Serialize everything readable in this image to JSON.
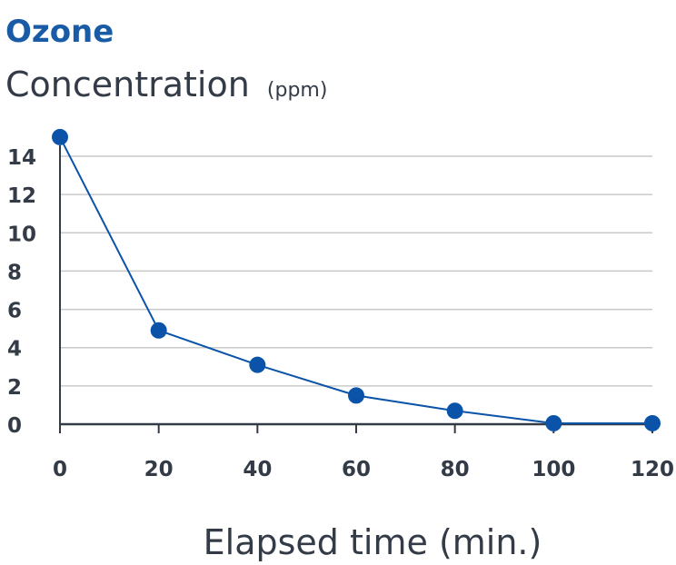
{
  "chart_data": {
    "type": "line",
    "title": "Ozone",
    "ylabel": "Concentration",
    "ylabel_unit": "(ppm)",
    "xlabel": "Elapsed time (min.)",
    "x": [
      0,
      20,
      40,
      60,
      80,
      100,
      120
    ],
    "series": [
      {
        "values": [
          15,
          4.9,
          3.1,
          1.5,
          0.7,
          0.05,
          0.05
        ]
      }
    ],
    "xticks": [
      0,
      20,
      40,
      60,
      80,
      100,
      120
    ],
    "yticks": [
      0,
      2,
      4,
      6,
      8,
      10,
      12,
      14
    ],
    "xlim": [
      0,
      120
    ],
    "ylim": [
      0,
      14
    ],
    "grid": "horizontal",
    "colors": {
      "title": "#1a5ba6",
      "text": "#333b47",
      "series": "#0a53a8",
      "grid": "#c9c9c9",
      "axis": "#333b47"
    }
  }
}
